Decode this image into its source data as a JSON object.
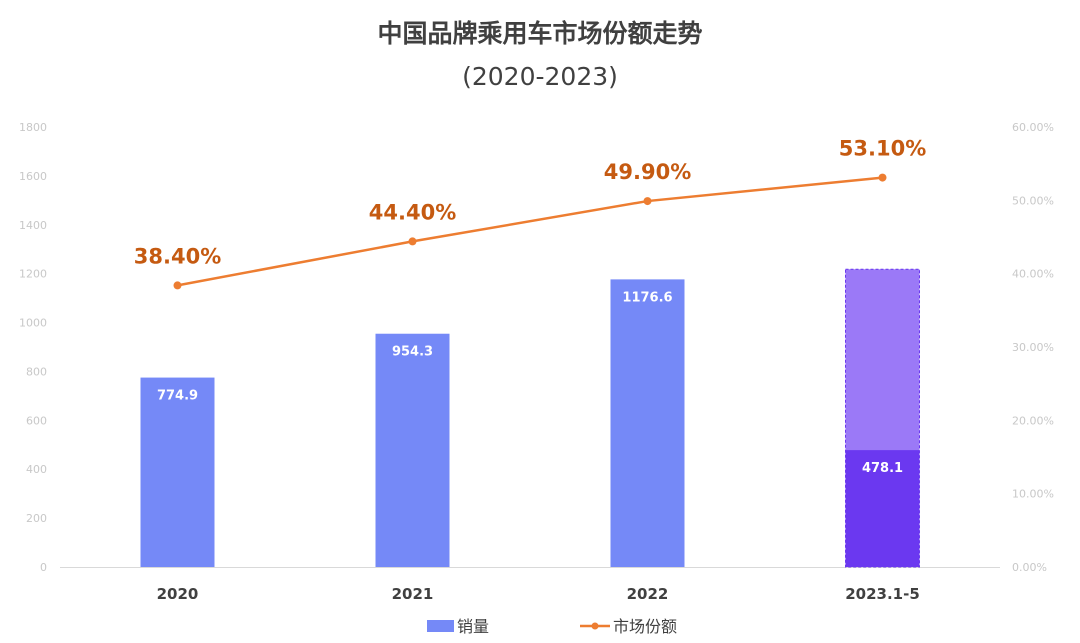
{
  "chart_data": {
    "type": "bar",
    "title": "中国品牌乘用车市场份额走势",
    "subtitle": "(2020-2023)",
    "categories": [
      "2020",
      "2021",
      "2022",
      "2023.1-5"
    ],
    "series": [
      {
        "name": "销量",
        "type": "bar",
        "axis": "left",
        "values": [
          774.9,
          954.3,
          1176.6,
          478.1
        ],
        "labels": [
          "774.9",
          "954.3",
          "1176.6",
          "478.1"
        ],
        "color": "#7589f7",
        "highlight_color": "#6b38f0"
      },
      {
        "name": "市场份额",
        "type": "line",
        "axis": "right",
        "values": [
          38.4,
          44.4,
          49.9,
          53.1
        ],
        "labels": [
          "38.40%",
          "44.40%",
          "49.90%",
          "53.10%"
        ],
        "color": "#ed7d31",
        "label_color": "#c55a11"
      }
    ],
    "projection": {
      "category": "2023.1-5",
      "value": 1218,
      "color": "#9b79f7",
      "border_color": "#6b38f0"
    },
    "y_left": {
      "ylim": [
        0,
        1800
      ],
      "ticks": [
        "0",
        "200",
        "400",
        "600",
        "800",
        "1000",
        "1200",
        "1400",
        "1600",
        "1800"
      ]
    },
    "y_right": {
      "ylim": [
        0,
        60
      ],
      "ticks": [
        "0.00%",
        "10.00%",
        "20.00%",
        "30.00%",
        "40.00%",
        "50.00%",
        "60.00%"
      ]
    },
    "grid": false,
    "legend": {
      "position": "bottom",
      "items": [
        {
          "label": "销量",
          "kind": "bar",
          "color": "#7589f7"
        },
        {
          "label": "市场份额",
          "kind": "line",
          "color": "#ed7d31"
        }
      ]
    }
  }
}
